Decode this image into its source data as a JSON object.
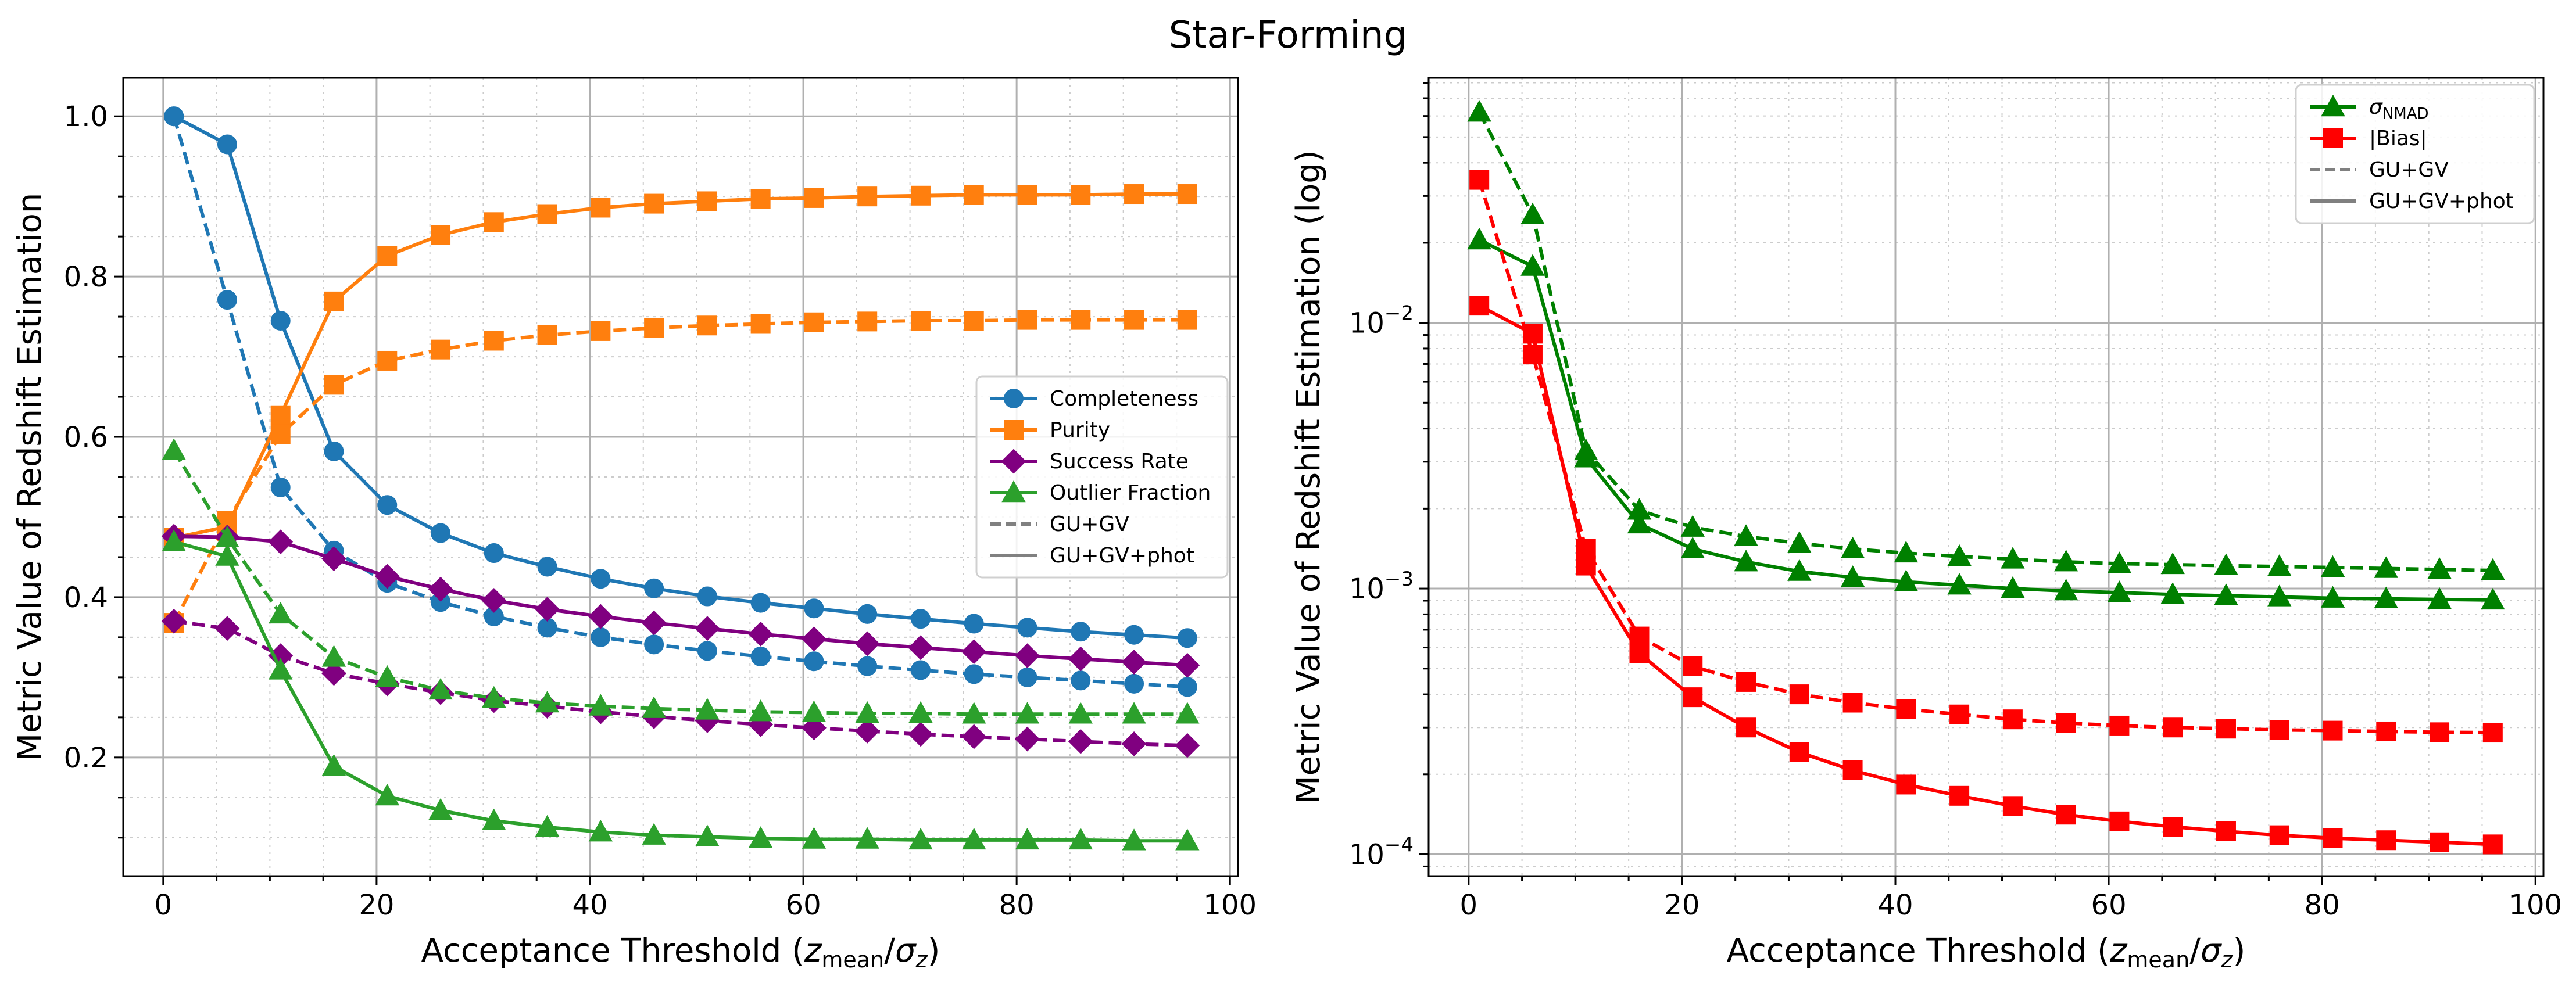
{
  "figure": {
    "title": "Star-Forming"
  },
  "chart_data": [
    {
      "type": "line",
      "id": "left",
      "x": [
        1,
        6,
        11,
        16,
        21,
        26,
        31,
        36,
        41,
        46,
        51,
        56,
        61,
        66,
        71,
        76,
        81,
        86,
        91,
        96
      ],
      "xlabel": "Acceptance Threshold (",
      "xlabel_var": "z",
      "xlabel_sub1": "mean",
      "xlabel_slash": "/",
      "xlabel_sigma": "σ",
      "xlabel_sub2": "z",
      "xlabel_close": ")",
      "ylabel": "Metric Value of Redshift Estimation",
      "xlim": [
        -3.75,
        100.75
      ],
      "ylim": [
        0.052,
        1.048
      ],
      "yscale": "linear",
      "xticks": [
        0,
        20,
        40,
        60,
        80,
        100
      ],
      "xtick_labels": [
        "0",
        "20",
        "40",
        "60",
        "80",
        "100"
      ],
      "yticks": [
        0.2,
        0.4,
        0.6,
        0.8,
        1.0
      ],
      "ytick_labels": [
        "0.2",
        "0.4",
        "0.6",
        "0.8",
        "1.0"
      ],
      "grid": true,
      "legend_position": "center-right",
      "legend": [
        {
          "label": "Completeness",
          "color": "#1f77b4",
          "marker": "circle",
          "style": "solid"
        },
        {
          "label": "Purity",
          "color": "#ff7f0e",
          "marker": "square",
          "style": "solid"
        },
        {
          "label": "Success Rate",
          "color": "#800080",
          "marker": "diamond",
          "style": "solid"
        },
        {
          "label": "Outlier Fraction",
          "color": "#2ca02c",
          "marker": "triangle",
          "style": "solid"
        },
        {
          "label": "GU+GV",
          "color": "#808080",
          "marker": "none",
          "style": "dashed"
        },
        {
          "label": "GU+GV+phot",
          "color": "#808080",
          "marker": "none",
          "style": "solid"
        }
      ],
      "series": [
        {
          "name": "Completeness (GU+GV+phot)",
          "color": "#1f77b4",
          "marker": "circle",
          "style": "solid",
          "values": [
            1.0,
            0.965,
            0.745,
            0.582,
            0.515,
            0.48,
            0.455,
            0.438,
            0.423,
            0.411,
            0.401,
            0.393,
            0.386,
            0.379,
            0.373,
            0.367,
            0.362,
            0.357,
            0.353,
            0.349
          ]
        },
        {
          "name": "Completeness (GU+GV)",
          "color": "#1f77b4",
          "marker": "circle",
          "style": "dashed",
          "values": [
            1.0,
            0.771,
            0.537,
            0.458,
            0.418,
            0.394,
            0.376,
            0.362,
            0.35,
            0.341,
            0.333,
            0.326,
            0.32,
            0.314,
            0.309,
            0.304,
            0.3,
            0.296,
            0.292,
            0.288
          ]
        },
        {
          "name": "Purity (GU+GV+phot)",
          "color": "#ff7f0e",
          "marker": "square",
          "style": "solid",
          "values": [
            0.474,
            0.488,
            0.627,
            0.769,
            0.826,
            0.852,
            0.868,
            0.878,
            0.886,
            0.891,
            0.894,
            0.897,
            0.898,
            0.9,
            0.901,
            0.902,
            0.902,
            0.902,
            0.903,
            0.903
          ]
        },
        {
          "name": "Purity (GU+GV)",
          "color": "#ff7f0e",
          "marker": "square",
          "style": "dashed",
          "values": [
            0.368,
            0.495,
            0.603,
            0.665,
            0.695,
            0.709,
            0.72,
            0.727,
            0.732,
            0.736,
            0.739,
            0.741,
            0.743,
            0.744,
            0.745,
            0.745,
            0.746,
            0.746,
            0.746,
            0.746
          ]
        },
        {
          "name": "Success Rate (GU+GV+phot)",
          "color": "#800080",
          "marker": "diamond",
          "style": "solid",
          "values": [
            0.476,
            0.475,
            0.469,
            0.448,
            0.426,
            0.41,
            0.396,
            0.385,
            0.376,
            0.368,
            0.361,
            0.354,
            0.348,
            0.342,
            0.337,
            0.332,
            0.327,
            0.323,
            0.319,
            0.315
          ]
        },
        {
          "name": "Success Rate (GU+GV)",
          "color": "#800080",
          "marker": "diamond",
          "style": "dashed",
          "values": [
            0.37,
            0.361,
            0.327,
            0.305,
            0.292,
            0.281,
            0.271,
            0.264,
            0.257,
            0.251,
            0.246,
            0.241,
            0.237,
            0.233,
            0.229,
            0.226,
            0.223,
            0.22,
            0.217,
            0.215
          ]
        },
        {
          "name": "Outlier Fraction (GU+GV+phot)",
          "color": "#2ca02c",
          "marker": "triangle",
          "style": "solid",
          "values": [
            0.469,
            0.451,
            0.309,
            0.189,
            0.152,
            0.134,
            0.121,
            0.113,
            0.107,
            0.103,
            0.101,
            0.099,
            0.098,
            0.098,
            0.097,
            0.097,
            0.097,
            0.097,
            0.096,
            0.096
          ]
        },
        {
          "name": "Outlier Fraction (GU+GV)",
          "color": "#2ca02c",
          "marker": "triangle",
          "style": "dashed",
          "values": [
            0.583,
            0.474,
            0.379,
            0.325,
            0.3,
            0.284,
            0.274,
            0.268,
            0.264,
            0.261,
            0.259,
            0.257,
            0.256,
            0.255,
            0.255,
            0.254,
            0.254,
            0.254,
            0.254,
            0.254
          ]
        }
      ]
    },
    {
      "type": "line",
      "id": "right",
      "x": [
        1,
        6,
        11,
        16,
        21,
        26,
        31,
        36,
        41,
        46,
        51,
        56,
        61,
        66,
        71,
        76,
        81,
        86,
        91,
        96
      ],
      "xlabel": "Acceptance Threshold (",
      "xlabel_var": "z",
      "xlabel_sub1": "mean",
      "xlabel_slash": "/",
      "xlabel_sigma": "σ",
      "xlabel_sub2": "z",
      "xlabel_close": ")",
      "ylabel": "Metric Value of Redshift Estimation (log)",
      "xlim": [
        -3.75,
        100.75
      ],
      "ylim": [
        8.28e-05,
        0.0835
      ],
      "yscale": "log",
      "xticks": [
        0,
        20,
        40,
        60,
        80,
        100
      ],
      "xtick_labels": [
        "0",
        "20",
        "40",
        "60",
        "80",
        "100"
      ],
      "yticks": [
        0.0001,
        0.001,
        0.01
      ],
      "ytick_labels": [
        {
          "base": "10",
          "exp": "−4"
        },
        {
          "base": "10",
          "exp": "−3"
        },
        {
          "base": "10",
          "exp": "−2"
        }
      ],
      "grid": true,
      "legend_position": "top-right",
      "legend": [
        {
          "label": "σ",
          "label_sub": "NMAD",
          "color": "#008000",
          "marker": "triangle",
          "style": "solid"
        },
        {
          "label": "|Bias|",
          "color": "#ff0000",
          "marker": "square",
          "style": "solid"
        },
        {
          "label": "GU+GV",
          "color": "#808080",
          "marker": "none",
          "style": "dashed"
        },
        {
          "label": "GU+GV+phot",
          "color": "#808080",
          "marker": "none",
          "style": "solid"
        }
      ],
      "series": [
        {
          "name": "sigma_NMAD (GU+GV+phot)",
          "color": "#008000",
          "marker": "triangle",
          "style": "solid",
          "values": [
            0.0205,
            0.0163,
            0.0031,
            0.00175,
            0.00141,
            0.00126,
            0.00116,
            0.0011,
            0.00106,
            0.00103,
            0.001,
            0.00098,
            0.000965,
            0.00095,
            0.00094,
            0.00093,
            0.00092,
            0.000915,
            0.00091,
            0.000905
          ]
        },
        {
          "name": "sigma_NMAD (GU+GV)",
          "color": "#008000",
          "marker": "triangle",
          "style": "dashed",
          "values": [
            0.062,
            0.0255,
            0.0033,
            0.00197,
            0.0017,
            0.00157,
            0.00148,
            0.00141,
            0.00136,
            0.00132,
            0.00129,
            0.00126,
            0.00124,
            0.00123,
            0.00122,
            0.00121,
            0.0012,
            0.00119,
            0.00118,
            0.00117
          ]
        },
        {
          "name": "|Bias| (GU+GV+phot)",
          "color": "#ff0000",
          "marker": "square",
          "style": "solid",
          "values": [
            0.0116,
            0.0091,
            0.00122,
            0.00057,
            0.00039,
            0.0003,
            0.000242,
            0.000207,
            0.000183,
            0.000166,
            0.000152,
            0.000141,
            0.000133,
            0.000127,
            0.000122,
            0.000118,
            0.000115,
            0.000113,
            0.000111,
            0.000109
          ]
        },
        {
          "name": "|Bias| (GU+GV)",
          "color": "#ff0000",
          "marker": "square",
          "style": "dashed",
          "values": [
            0.0345,
            0.0076,
            0.00141,
            0.00066,
            0.00051,
            0.000445,
            0.0004,
            0.000372,
            0.000352,
            0.000336,
            0.000322,
            0.000312,
            0.000305,
            0.0003,
            0.000297,
            0.000294,
            0.000292,
            0.00029,
            0.000288,
            0.000287
          ]
        }
      ]
    }
  ]
}
